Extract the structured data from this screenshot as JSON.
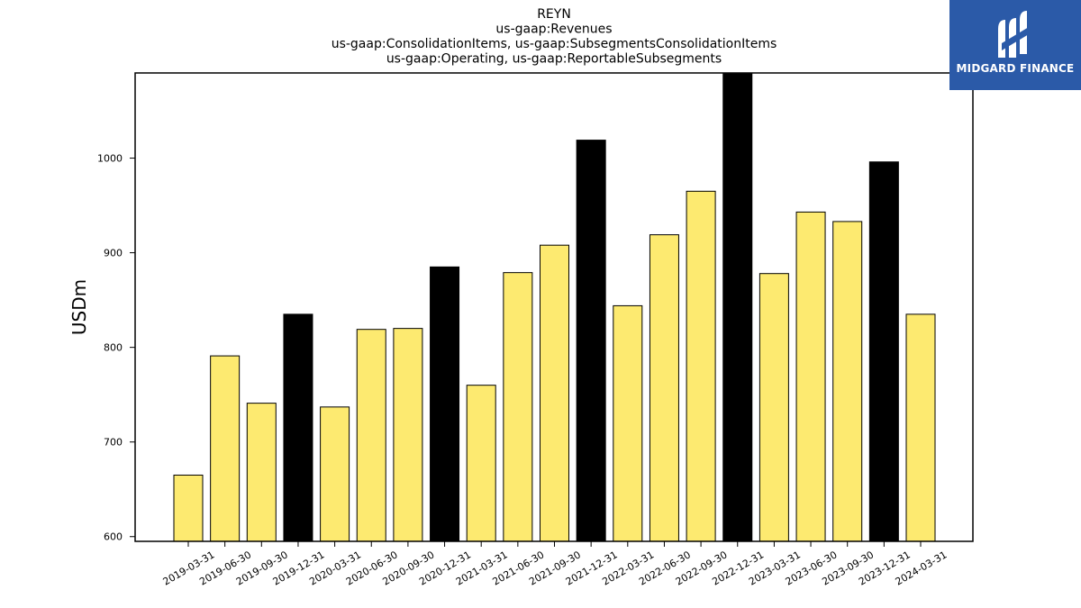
{
  "logo": {
    "text": "MIDGARD FINANCE",
    "icon": "midgard-m-logo-icon",
    "background": "#2b5aa8"
  },
  "chart_data": {
    "type": "bar",
    "title_lines": [
      "REYN",
      "us-gaap:Revenues",
      "us-gaap:ConsolidationItems, us-gaap:SubsegmentsConsolidationItems",
      "us-gaap:Operating, us-gaap:ReportableSubsegments"
    ],
    "xlabel": "",
    "ylabel": "USDm",
    "ylim": [
      595,
      1090
    ],
    "yticks": [
      600,
      700,
      800,
      900,
      1000
    ],
    "grid": false,
    "colors": {
      "quarter": "#fdea70",
      "year_end": "#000000",
      "edge": "#000000"
    },
    "categories": [
      "2019-03-31",
      "2019-06-30",
      "2019-09-30",
      "2019-12-31",
      "2020-03-31",
      "2020-06-30",
      "2020-09-30",
      "2020-12-31",
      "2021-03-31",
      "2021-06-30",
      "2021-09-30",
      "2021-12-31",
      "2022-03-31",
      "2022-06-30",
      "2022-09-30",
      "2022-12-31",
      "2023-03-31",
      "2023-06-30",
      "2023-09-30",
      "2023-12-31",
      "2024-03-31"
    ],
    "values": [
      665,
      791,
      741,
      835,
      737,
      819,
      820,
      885,
      760,
      879,
      908,
      1019,
      844,
      919,
      965,
      1089,
      878,
      943,
      933,
      996,
      835
    ],
    "highlight": [
      false,
      false,
      false,
      true,
      false,
      false,
      false,
      true,
      false,
      false,
      false,
      true,
      false,
      false,
      false,
      true,
      false,
      false,
      false,
      true,
      false
    ]
  }
}
